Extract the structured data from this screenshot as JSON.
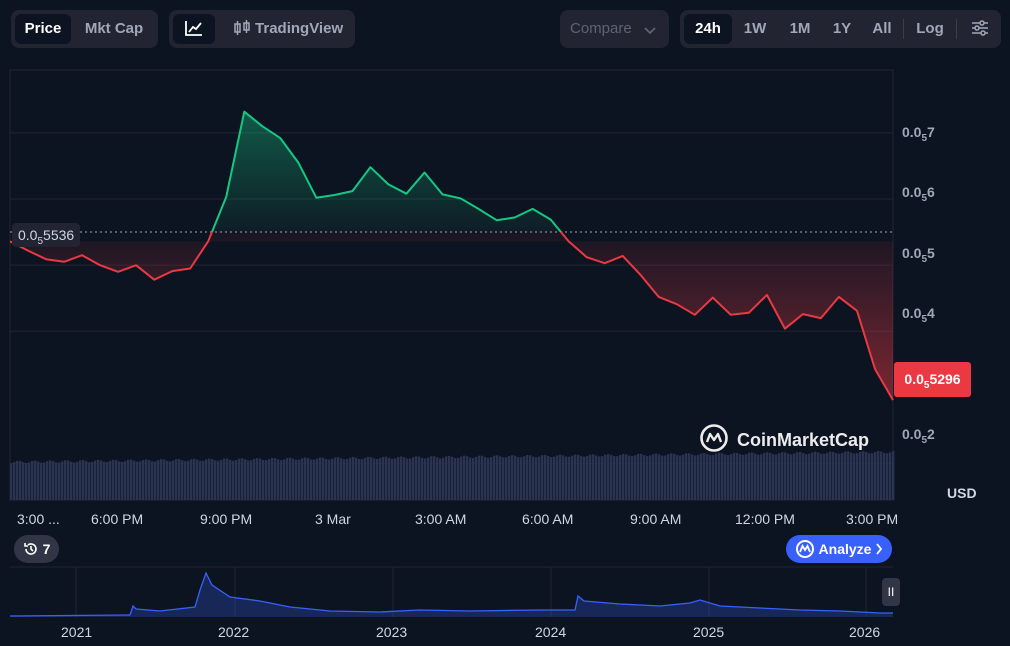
{
  "toolbar": {
    "type_tabs": [
      {
        "label": "Price",
        "active": true
      },
      {
        "label": "Mkt Cap",
        "active": false
      }
    ],
    "chart_mode": {
      "line_icon": "line-chart-icon",
      "tv_icon": "candlestick-icon",
      "tv_label": "TradingView"
    },
    "compare": {
      "label": "Compare",
      "icon": "chevron-down-icon"
    },
    "ranges": [
      {
        "label": "24h",
        "active": true
      },
      {
        "label": "1W",
        "active": false
      },
      {
        "label": "1M",
        "active": false
      },
      {
        "label": "1Y",
        "active": false
      },
      {
        "label": "All",
        "active": false
      }
    ],
    "log_label": "Log",
    "settings_icon": "sliders-icon"
  },
  "price": {
    "open_label": {
      "prefix": "0.0",
      "sub": "5",
      "rest": "5536"
    },
    "current_label": {
      "prefix": "0.0",
      "sub": "5",
      "rest": "5296"
    },
    "currency": "USD",
    "up_color": "#16c784",
    "down_color": "#ea3943"
  },
  "y_axis": {
    "ticks": [
      {
        "prefix": "0.0",
        "sub": "5",
        "rest": "7",
        "value": 0.57
      },
      {
        "prefix": "0.0",
        "sub": "5",
        "rest": "6",
        "value": 0.56
      },
      {
        "prefix": "0.0",
        "sub": "5",
        "rest": "5",
        "value": 0.55
      },
      {
        "prefix": "0.0",
        "sub": "5",
        "rest": "4",
        "value": 0.54
      },
      {
        "prefix": "0.0",
        "sub": "5",
        "rest": "2",
        "value": 0.52
      }
    ]
  },
  "x_axis": {
    "labels": [
      "3:00 ...",
      "6:00 PM",
      "9:00 PM",
      "3 Mar",
      "3:00 AM",
      "6:00 AM",
      "9:00 AM",
      "12:00 PM",
      "3:00 PM"
    ]
  },
  "watermark": "CoinMarketCap",
  "history_badge": {
    "icon": "history-icon",
    "count": "7"
  },
  "analyze": {
    "label": "Analyze",
    "icon": "analyze-logo-icon",
    "chevron": "chevron-right-icon"
  },
  "navigator": {
    "years": [
      "2021",
      "2022",
      "2023",
      "2024",
      "2025",
      "2026"
    ],
    "pause_icon": "pause-icon"
  },
  "chart_data": {
    "type": "area",
    "title": "",
    "xlabel": "",
    "ylabel": "",
    "baseline": 0.5536,
    "ylim": [
      0.5145,
      0.5795
    ],
    "x": [
      "15:00",
      "15:30",
      "16:00",
      "16:30",
      "17:00",
      "17:30",
      "18:00",
      "18:30",
      "19:00",
      "19:30",
      "20:00",
      "20:15",
      "20:30",
      "21:00",
      "21:30",
      "22:00",
      "22:30",
      "23:00",
      "23:30",
      "00:00",
      "00:30",
      "01:00",
      "01:30",
      "02:00",
      "02:30",
      "03:00",
      "03:30",
      "04:00",
      "04:30",
      "05:00",
      "05:30",
      "06:00",
      "06:30",
      "07:00",
      "07:30",
      "08:00",
      "08:30",
      "09:00",
      "09:30",
      "10:00",
      "10:30",
      "11:00",
      "11:30",
      "12:00",
      "12:30",
      "13:00",
      "13:30",
      "14:00",
      "14:30",
      "15:00"
    ],
    "values": [
      0.5536,
      0.5522,
      0.5509,
      0.5505,
      0.5515,
      0.55,
      0.549,
      0.55,
      0.5478,
      0.5491,
      0.5495,
      0.5536,
      0.5603,
      0.5732,
      0.571,
      0.5692,
      0.5655,
      0.5602,
      0.5606,
      0.5612,
      0.5648,
      0.5622,
      0.5608,
      0.564,
      0.5607,
      0.5601,
      0.5585,
      0.5568,
      0.5572,
      0.5585,
      0.5569,
      0.5536,
      0.5512,
      0.5503,
      0.5514,
      0.5485,
      0.5452,
      0.5441,
      0.5425,
      0.5451,
      0.5425,
      0.5428,
      0.5455,
      0.5404,
      0.5426,
      0.542,
      0.5452,
      0.5431,
      0.5343,
      0.5296
    ],
    "volume": "constant bars across the range"
  }
}
